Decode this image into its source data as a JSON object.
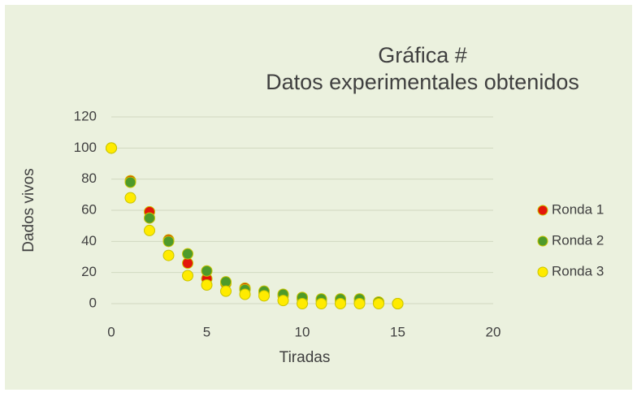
{
  "chart_data": {
    "type": "scatter",
    "title": [
      "Gráfica #",
      "Datos experimentales obtenidos"
    ],
    "x_label": "Tiradas",
    "y_label": "Dados vivos",
    "xlim": [
      0,
      20
    ],
    "xticks": [
      0,
      5,
      10,
      15,
      20
    ],
    "ylim": [
      0,
      120
    ],
    "yticks": [
      0,
      20,
      40,
      60,
      80,
      100,
      120
    ],
    "grid": true,
    "legend": "right",
    "series": [
      {
        "name": "Ronda 1",
        "color": "#e3170a",
        "x": [
          0,
          1,
          2,
          3,
          4,
          5,
          6,
          7,
          8,
          9,
          10,
          11,
          12,
          13,
          14,
          15
        ],
        "values": [
          100,
          79,
          59,
          41,
          26,
          16,
          13,
          10,
          7,
          5,
          3,
          2,
          2,
          1,
          1,
          0
        ]
      },
      {
        "name": "Ronda 2",
        "color": "#4e9a2a",
        "x": [
          0,
          1,
          2,
          3,
          4,
          5,
          6,
          7,
          8,
          9,
          10,
          11,
          12,
          13,
          14,
          15
        ],
        "values": [
          100,
          78,
          55,
          40,
          32,
          21,
          14,
          9,
          8,
          6,
          4,
          3,
          3,
          3,
          1,
          0
        ]
      },
      {
        "name": "Ronda 3",
        "color": "#ffeb00",
        "x": [
          0,
          1,
          2,
          3,
          4,
          5,
          6,
          7,
          8,
          9,
          10,
          11,
          12,
          13,
          14,
          15
        ],
        "values": [
          100,
          68,
          47,
          31,
          18,
          12,
          8,
          6,
          5,
          2,
          0,
          0,
          0,
          0,
          0,
          0
        ]
      }
    ]
  }
}
